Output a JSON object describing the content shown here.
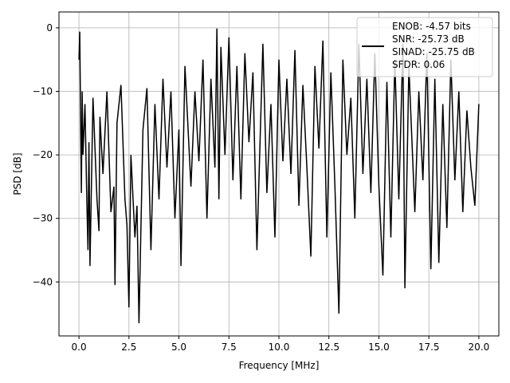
{
  "chart_data": {
    "type": "line",
    "title": "",
    "xlabel": "Frequency [MHz]",
    "ylabel": "PSD [dB]",
    "xlim": [
      -1.0,
      21.0
    ],
    "ylim": [
      -48.5,
      2.5
    ],
    "x_ticks": [
      0.0,
      2.5,
      5.0,
      7.5,
      10.0,
      12.5,
      15.0,
      17.5,
      20.0
    ],
    "x_tick_labels": [
      "0.0",
      "2.5",
      "5.0",
      "7.5",
      "10.0",
      "12.5",
      "15.0",
      "17.5",
      "20.0"
    ],
    "y_ticks": [
      0,
      -10,
      -20,
      -30,
      -40
    ],
    "y_tick_labels": [
      "0",
      "−10",
      "−20",
      "−30",
      "−40"
    ],
    "grid": true,
    "legend_position": "top-right",
    "legend_lines": [
      "ENOB: -4.57 bits",
      "SNR: -25.73 dB",
      "SINAD: -25.75 dB",
      "SFDR: 0.06"
    ],
    "series": [
      {
        "color": "#000000",
        "x": [
          0.0,
          0.04,
          0.08,
          0.12,
          0.16,
          0.2,
          0.3,
          0.4,
          0.45,
          0.5,
          0.55,
          0.7,
          0.9,
          1.0,
          1.05,
          1.2,
          1.4,
          1.6,
          1.75,
          1.8,
          1.9,
          2.1,
          2.3,
          2.4,
          2.5,
          2.6,
          2.8,
          2.9,
          3.0,
          3.2,
          3.4,
          3.6,
          3.8,
          4.0,
          4.2,
          4.4,
          4.6,
          4.8,
          5.0,
          5.1,
          5.3,
          5.6,
          5.8,
          6.0,
          6.2,
          6.4,
          6.6,
          6.8,
          6.9,
          7.0,
          7.1,
          7.3,
          7.5,
          7.7,
          7.9,
          8.1,
          8.3,
          8.5,
          8.7,
          8.9,
          9.2,
          9.4,
          9.6,
          9.8,
          10.0,
          10.2,
          10.4,
          10.6,
          10.8,
          11.0,
          11.2,
          11.4,
          11.6,
          11.8,
          12.0,
          12.2,
          12.4,
          12.6,
          12.8,
          13.0,
          13.2,
          13.4,
          13.6,
          13.8,
          14.0,
          14.2,
          14.4,
          14.6,
          14.8,
          15.0,
          15.2,
          15.4,
          15.6,
          15.8,
          16.0,
          16.2,
          16.3,
          16.5,
          16.8,
          17.0,
          17.2,
          17.4,
          17.6,
          17.8,
          18.0,
          18.2,
          18.4,
          18.6,
          18.8,
          19.0,
          19.2,
          19.4,
          19.6,
          19.8,
          20.0
        ],
        "values": [
          -5.0,
          -0.6,
          -14.0,
          -26.0,
          -10.0,
          -20.0,
          -12.0,
          -28.0,
          -35.0,
          -18.0,
          -37.5,
          -11.0,
          -27.0,
          -32.0,
          -14.0,
          -23.0,
          -10.0,
          -29.0,
          -25.0,
          -40.5,
          -15.0,
          -9.0,
          -27.0,
          -31.0,
          -44.0,
          -20.0,
          -33.0,
          -28.0,
          -46.5,
          -16.0,
          -9.5,
          -35.0,
          -12.0,
          -27.0,
          -8.0,
          -22.0,
          -10.0,
          -30.0,
          -16.0,
          -37.5,
          -6.0,
          -25.0,
          -10.0,
          -21.0,
          -5.0,
          -30.0,
          -8.0,
          -22.0,
          -0.1,
          -27.0,
          -3.0,
          -20.0,
          -1.5,
          -24.0,
          -6.0,
          -27.0,
          -4.0,
          -18.0,
          -7.0,
          -35.0,
          -2.5,
          -26.0,
          -12.0,
          -33.0,
          -5.0,
          -21.0,
          -8.0,
          -23.0,
          -3.5,
          -28.0,
          -9.0,
          -22.0,
          -36.0,
          -6.0,
          -19.0,
          -2.0,
          -33.0,
          -7.0,
          -25.0,
          -45.0,
          -5.0,
          -20.0,
          -11.0,
          -30.0,
          -2.5,
          -23.0,
          -8.0,
          -26.0,
          -4.0,
          -25.0,
          -39.0,
          -8.5,
          -33.0,
          -5.0,
          -27.0,
          -2.5,
          -41.0,
          -6.0,
          -29.0,
          -10.0,
          -24.0,
          -4.0,
          -38.0,
          -8.0,
          -37.0,
          -12.0,
          -31.5,
          -5.0,
          -24.0,
          -10.0,
          -29.0,
          -13.0,
          -22.0,
          -28.0,
          -12.0
        ]
      }
    ]
  }
}
